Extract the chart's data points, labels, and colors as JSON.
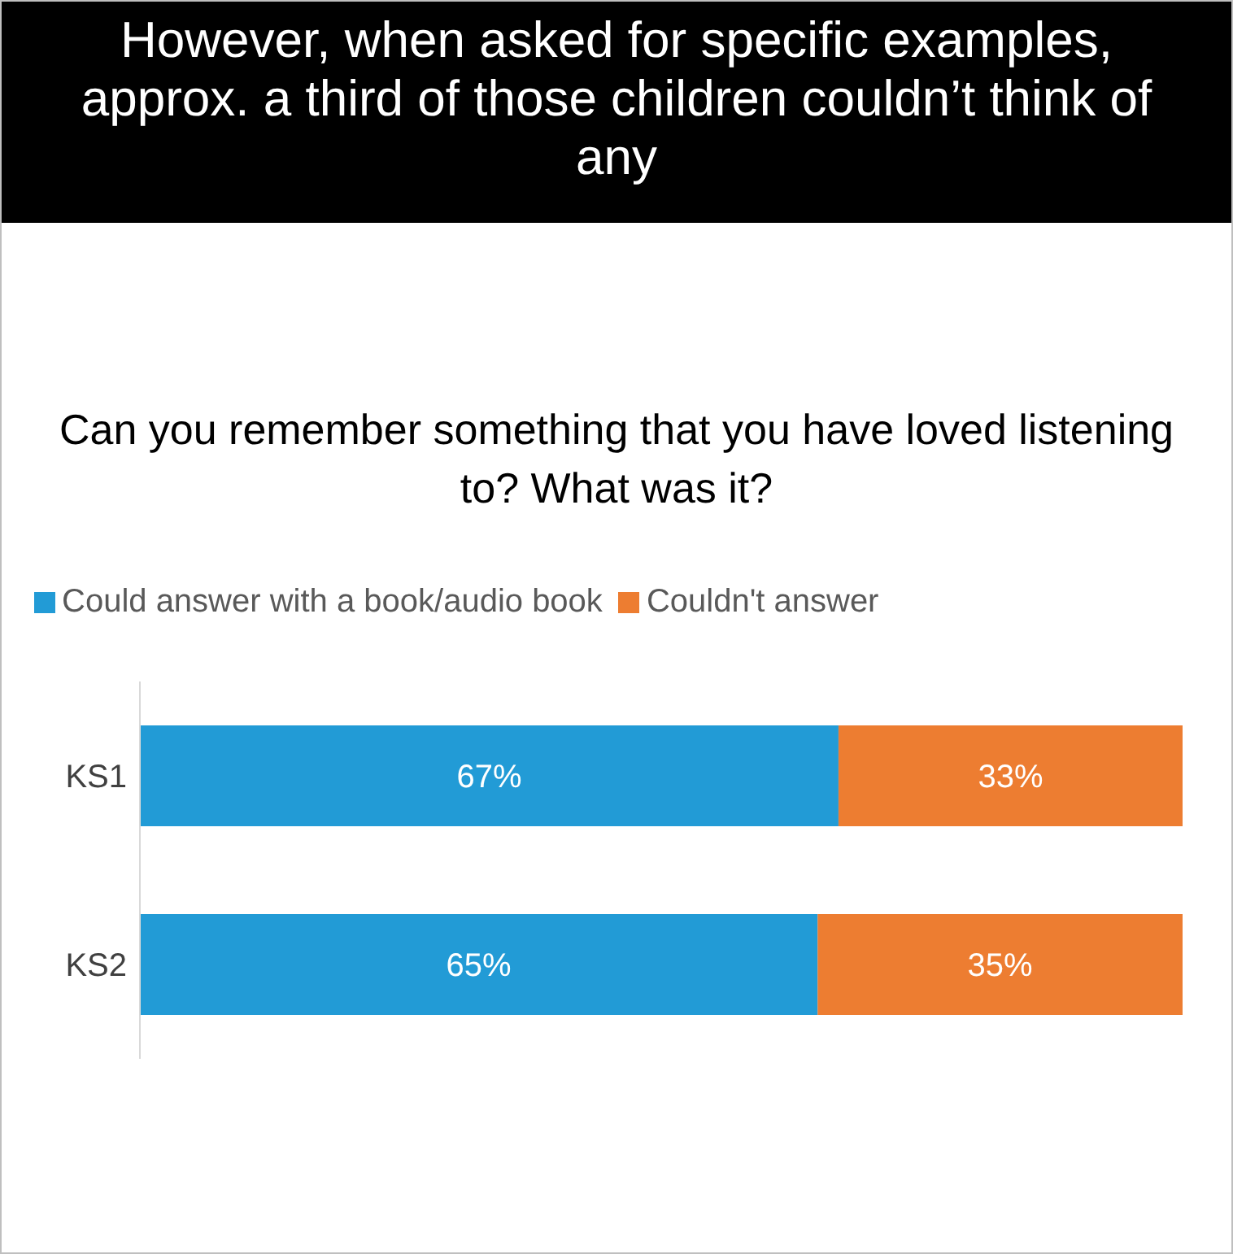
{
  "chart_data": {
    "type": "bar",
    "orientation": "horizontal",
    "stacked": true,
    "title": "However, when asked for specific examples, approx. a third of those children couldn’t think of any",
    "subtitle": "Can you remember something that you have loved listening to?  What was it?",
    "categories": [
      "KS1",
      "KS2"
    ],
    "series": [
      {
        "name": "Could answer with a book/audio book",
        "color": "#229bd6",
        "values": [
          67,
          65
        ],
        "value_labels": [
          "67%",
          "65%"
        ]
      },
      {
        "name": "Couldn't answer",
        "color": "#ed7d31",
        "values": [
          33,
          35
        ],
        "value_labels": [
          "33%",
          "35%"
        ]
      }
    ],
    "legend": "top",
    "grid": false
  }
}
